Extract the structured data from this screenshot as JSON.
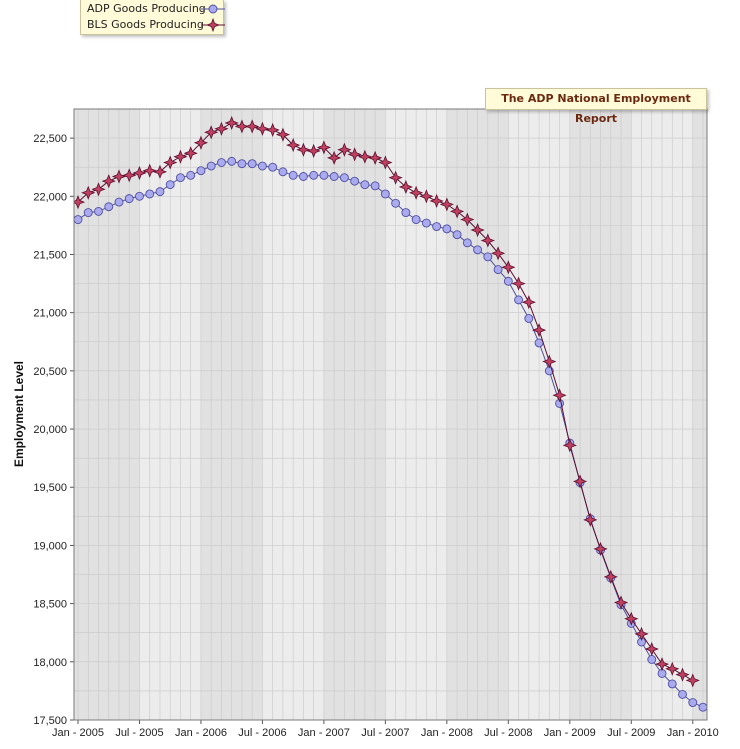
{
  "report_title": "The ADP National Employment Report",
  "legend": {
    "placement": "top-left"
  },
  "chart_data": {
    "type": "line",
    "ylabel": "Employment Level",
    "xlabel": "",
    "ylim": [
      17500,
      22750
    ],
    "y_ticks": [
      17500,
      18000,
      18500,
      19000,
      19500,
      20000,
      20500,
      21000,
      21500,
      22000,
      22500
    ],
    "y_tick_labels": [
      "17,500",
      "18,000",
      "18,500",
      "19,000",
      "19,500",
      "20,000",
      "20,500",
      "21,000",
      "21,500",
      "22,000",
      "22,500"
    ],
    "x_tick_labels": [
      "Jan - 2005",
      "Jul - 2005",
      "Jan - 2006",
      "Jul - 2006",
      "Jan - 2007",
      "Jul - 2007",
      "Jan - 2008",
      "Jul - 2008",
      "Jan - 2009",
      "Jul - 2009",
      "Jan - 2010"
    ],
    "x_start": "2005-01",
    "grid": true,
    "series": [
      {
        "name": "ADP Goods Producing",
        "color": "#aaaaee",
        "edge": "#5050a0",
        "marker": "circle",
        "values": [
          21800,
          21860,
          21870,
          21910,
          21950,
          21980,
          22000,
          22020,
          22040,
          22100,
          22160,
          22180,
          22220,
          22260,
          22290,
          22300,
          22280,
          22280,
          22260,
          22250,
          22210,
          22180,
          22170,
          22180,
          22180,
          22170,
          22160,
          22130,
          22100,
          22090,
          22020,
          21940,
          21860,
          21800,
          21770,
          21740,
          21720,
          21670,
          21600,
          21540,
          21480,
          21370,
          21270,
          21110,
          20950,
          20740,
          20500,
          20220,
          19880,
          19540,
          19230,
          18960,
          18720,
          18490,
          18330,
          18170,
          18020,
          17900,
          17810,
          17720,
          17650,
          17610
        ]
      },
      {
        "name": "BLS Goods Producing",
        "color": "#c04060",
        "edge": "#5a1030",
        "marker": "star",
        "values": [
          21950,
          22030,
          22060,
          22130,
          22170,
          22180,
          22200,
          22220,
          22210,
          22290,
          22340,
          22370,
          22460,
          22550,
          22580,
          22630,
          22600,
          22600,
          22580,
          22570,
          22530,
          22440,
          22400,
          22390,
          22420,
          22330,
          22400,
          22360,
          22340,
          22330,
          22290,
          22160,
          22080,
          22030,
          22000,
          21960,
          21930,
          21870,
          21800,
          21710,
          21620,
          21510,
          21390,
          21250,
          21090,
          20850,
          20580,
          20290,
          19860,
          19550,
          19220,
          18970,
          18730,
          18510,
          18370,
          18240,
          18110,
          17980,
          17940,
          17890,
          17840
        ]
      }
    ]
  }
}
